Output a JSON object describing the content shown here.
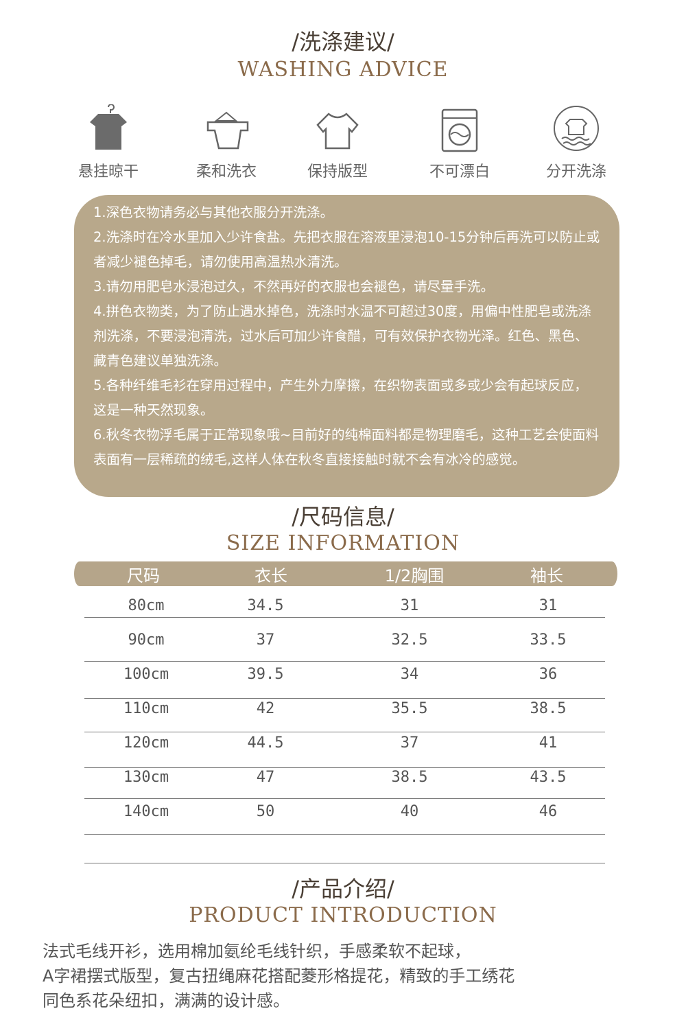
{
  "washing": {
    "title_zh": "/洗涤建议/",
    "title_en": "WASHING ADVICE",
    "icons": [
      {
        "icon": "hanging-shirt-icon",
        "label": "悬挂晾干"
      },
      {
        "icon": "detergent-scoop-icon",
        "label": "柔和洗衣"
      },
      {
        "icon": "tshirt-outline-icon",
        "label": "保持版型"
      },
      {
        "icon": "washing-machine-icon",
        "label": "不可漂白"
      },
      {
        "icon": "separate-wash-icon",
        "label": "分开洗涤"
      }
    ],
    "notes": [
      "1.深色衣物请务必与其他衣服分开洗涤。",
      "2.洗涤时在冷水里加入少许食盐。先把衣服在溶液里浸泡10-15分钟后再洗可以防止或者减少褪色掉毛，请勿使用高温热水清洗。",
      "3.请勿用肥皂水浸泡过久，不然再好的衣服也会褪色，请尽量手洗。",
      "4.拼色衣物类，为了防止遇水掉色，洗涤时水温不可超过30度，用偏中性肥皂或洗涤剂洗涤，不要浸泡清洗，过水后可加少许食醋，可有效保护衣物光泽。红色、黑色、藏青色建议单独洗涤。",
      "5.各种纤维毛衫在穿用过程中，产生外力摩擦，在织物表面或多或少会有起球反应，这是一种天然现象。",
      "6.秋冬衣物浮毛属于正常现象哦~目前好的纯棉面料都是物理磨毛，这种工艺会使面料表面有一层稀疏的绒毛,这样人体在秋冬直接接触时就不会有冰冷的感觉。"
    ],
    "accent": "#b8a88b"
  },
  "size": {
    "title_zh": "/尺码信息/",
    "title_en": "SIZE INFORMATION",
    "headers": [
      "尺码",
      "衣长",
      "1/2胸围",
      "袖长"
    ],
    "rows": [
      [
        "80cm",
        "34.5",
        "31",
        "31"
      ],
      [
        "90cm",
        "37",
        "32.5",
        "33.5"
      ],
      [
        "100cm",
        "39.5",
        "34",
        "36"
      ],
      [
        "110cm",
        "42",
        "35.5",
        "38.5"
      ],
      [
        "120cm",
        "44.5",
        "37",
        "41"
      ],
      [
        "130cm",
        "47",
        "38.5",
        "43.5"
      ],
      [
        "140cm",
        "50",
        "40",
        "46"
      ]
    ]
  },
  "intro": {
    "title_zh": "/产品介绍/",
    "title_en": "PRODUCT INTRODUCTION",
    "lines": [
      "法式毛线开衫，选用棉加氨纶毛线针织，手感柔软不起球，",
      "A字裙摆式版型，复古扭绳麻花搭配菱形格提花，精致的手工绣花",
      "同色系花朵纽扣，满满的设计感。"
    ]
  }
}
